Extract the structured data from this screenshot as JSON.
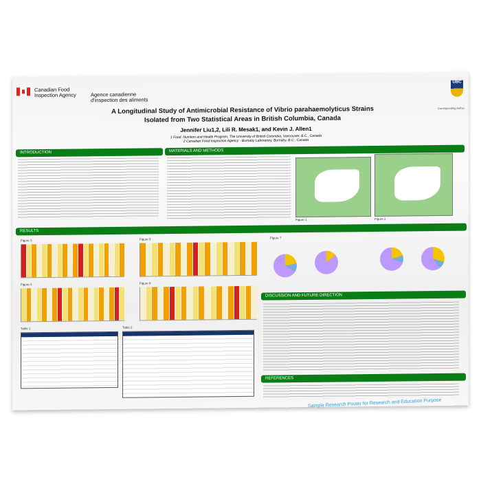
{
  "header": {
    "org_en": "Canadian Food Inspection Agency",
    "org_fr": "Agence canadienne d'inspection des aliments",
    "university": "UBC",
    "title_line1": "A Longitudinal Study of Antimicrobial Resistance of Vibrio parahaemolyticus Strains",
    "title_line2": "Isolated from Two Statistical Areas in British Columbia, Canada",
    "authors": "Jennifer Liu1,2, Lili R. Mesak1, and Kevin J. Allen1",
    "affiliation1": "1 Food, Nutrition and Health Program, The University of British Columbia, Vancouver, B.C., Canada",
    "affiliation2": "2 Canadian Food Inspection Agency - Burnaby Laboratory, Burnaby, B.C., Canada",
    "contact": "Corresponding Author"
  },
  "sections": {
    "introduction": "INTRODUCTION",
    "materials": "MATERIALS AND METHODS",
    "results": "RESULTS",
    "discussion": "DISCUSSION AND FUTURE DIRECTION",
    "references": "REFERENCES"
  },
  "figures": {
    "fig1": "Figure 1",
    "fig2": "Figure 2",
    "fig3": "Figure 3",
    "fig4": "Figure 4",
    "fig5": "Figure 5",
    "fig6": "Figure 6",
    "fig7": "Figure 7",
    "table1": "Table 1",
    "table2": "Table 2"
  },
  "colors": {
    "section_bar": "#0a7d16",
    "resistant": "#d32020",
    "intermediate": "#f0a000",
    "susceptible": "#f5e070",
    "watermark": "#29a3e0"
  },
  "watermark": "Sample Research Poster for Research and Education Purpose"
}
